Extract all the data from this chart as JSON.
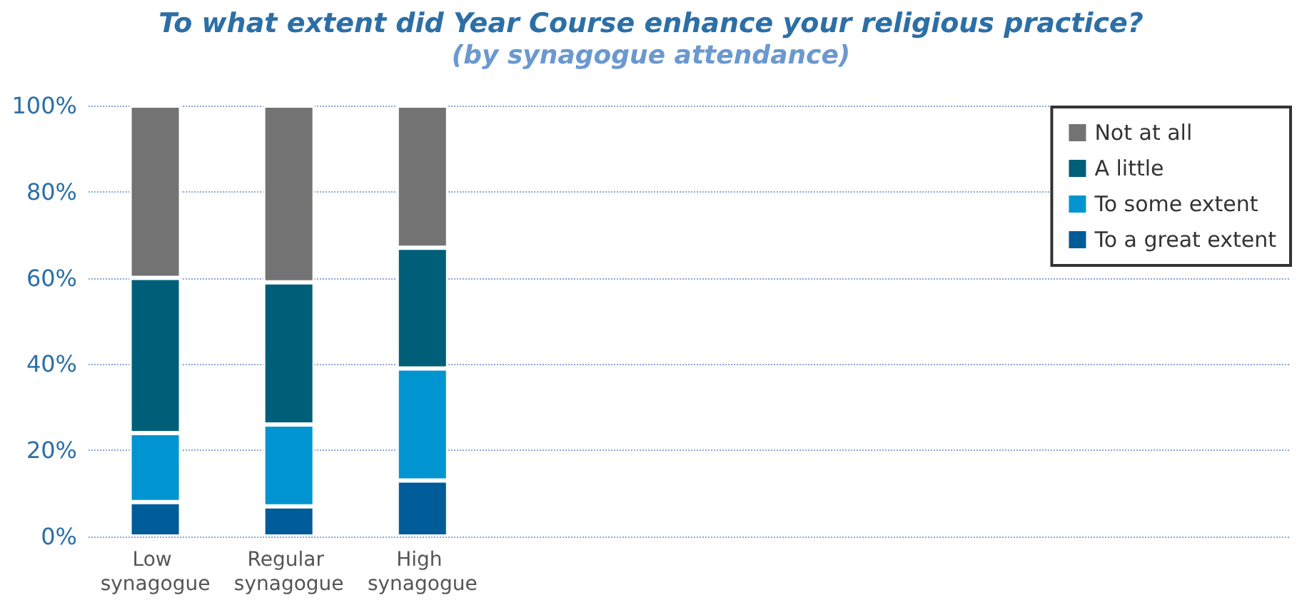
{
  "chart_data": {
    "type": "bar",
    "stacked": true,
    "title": "To what extent did Year Course enhance your religious practice?",
    "subtitle": "(by synagogue attendance)",
    "categories": [
      "Low synagogue",
      "Regular synagogue",
      "High synagogue"
    ],
    "series": [
      {
        "name": "To a great extent",
        "color": "#005b99",
        "values": [
          8,
          7,
          13
        ]
      },
      {
        "name": "To some extent",
        "color": "#0095d0",
        "values": [
          16,
          19,
          26
        ]
      },
      {
        "name": "A little",
        "color": "#005f78",
        "values": [
          36,
          33,
          28
        ]
      },
      {
        "name": "Not at all",
        "color": "#737373",
        "values": [
          40,
          41,
          33
        ]
      }
    ],
    "ylim": [
      0,
      100
    ],
    "yticks": [
      {
        "value": 0,
        "label": "0%"
      },
      {
        "value": 20,
        "label": "20%"
      },
      {
        "value": 40,
        "label": "40%"
      },
      {
        "value": 60,
        "label": "60%"
      },
      {
        "value": 80,
        "label": "80%"
      },
      {
        "value": 100,
        "label": "100%"
      }
    ],
    "grid": "y",
    "legend": "top right"
  }
}
